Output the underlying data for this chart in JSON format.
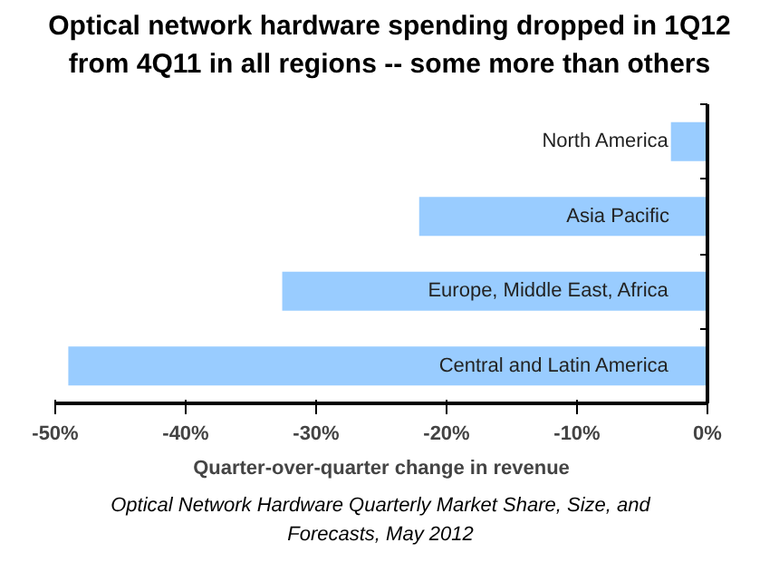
{
  "chart_data": {
    "type": "bar",
    "orientation": "horizontal",
    "title": "Optical network hardware spending dropped in 1Q12 from 4Q11 in all regions -- some more than others",
    "categories": [
      "North America",
      "Asia Pacific",
      "Europe, Middle East, Africa",
      "Central and Latin America"
    ],
    "values": [
      -2.8,
      -22.1,
      -32.6,
      -49.0
    ],
    "color": "#99ccff",
    "xlabel": "Quarter-over-quarter change in revenue",
    "xlim": [
      -50,
      0
    ],
    "xticks": [
      {
        "value": -50,
        "label": "-50%"
      },
      {
        "value": -40,
        "label": "-40%"
      },
      {
        "value": -30,
        "label": "-30%"
      },
      {
        "value": -20,
        "label": "-20%"
      },
      {
        "value": -10,
        "label": "-10%"
      },
      {
        "value": 0,
        "label": "0%"
      }
    ],
    "grid": false,
    "annotations": [
      "Optical Network Hardware Quarterly Market Share, Size, and Forecasts, May 2012"
    ]
  }
}
